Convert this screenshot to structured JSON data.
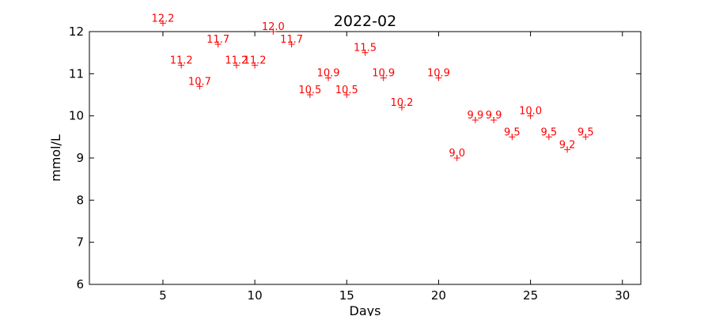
{
  "chart_data": {
    "type": "scatter",
    "title": "2022-02",
    "xlabel": "Days",
    "ylabel": "mmol/L",
    "xlim": [
      1,
      31
    ],
    "ylim": [
      6,
      12
    ],
    "xticks": [
      5,
      10,
      15,
      20,
      25,
      30
    ],
    "yticks": [
      6,
      7,
      8,
      9,
      10,
      11,
      12
    ],
    "grid": false,
    "marker": "+",
    "point_color": "#ff0000",
    "points": [
      {
        "x": 5,
        "y": 12.2,
        "label": "12.2"
      },
      {
        "x": 6,
        "y": 11.2,
        "label": "11.2"
      },
      {
        "x": 7,
        "y": 10.7,
        "label": "10.7"
      },
      {
        "x": 8,
        "y": 11.7,
        "label": "11.7"
      },
      {
        "x": 9,
        "y": 11.2,
        "label": "11.2"
      },
      {
        "x": 10,
        "y": 11.2,
        "label": "11.2"
      },
      {
        "x": 11,
        "y": 12.0,
        "label": "12.0"
      },
      {
        "x": 12,
        "y": 11.7,
        "label": "11.7"
      },
      {
        "x": 13,
        "y": 10.5,
        "label": "10.5"
      },
      {
        "x": 14,
        "y": 10.9,
        "label": "10.9"
      },
      {
        "x": 15,
        "y": 10.5,
        "label": "10.5"
      },
      {
        "x": 16,
        "y": 11.5,
        "label": "11.5"
      },
      {
        "x": 17,
        "y": 10.9,
        "label": "10.9"
      },
      {
        "x": 18,
        "y": 10.2,
        "label": "10.2"
      },
      {
        "x": 20,
        "y": 10.9,
        "label": "10.9"
      },
      {
        "x": 21,
        "y": 9.0,
        "label": "9.0"
      },
      {
        "x": 22,
        "y": 9.9,
        "label": "9.9"
      },
      {
        "x": 23,
        "y": 9.9,
        "label": "9.9"
      },
      {
        "x": 24,
        "y": 9.5,
        "label": "9.5"
      },
      {
        "x": 25,
        "y": 10.0,
        "label": "10.0"
      },
      {
        "x": 26,
        "y": 9.5,
        "label": "9.5"
      },
      {
        "x": 27,
        "y": 9.2,
        "label": "9.2"
      },
      {
        "x": 28,
        "y": 9.5,
        "label": "9.5"
      }
    ]
  }
}
